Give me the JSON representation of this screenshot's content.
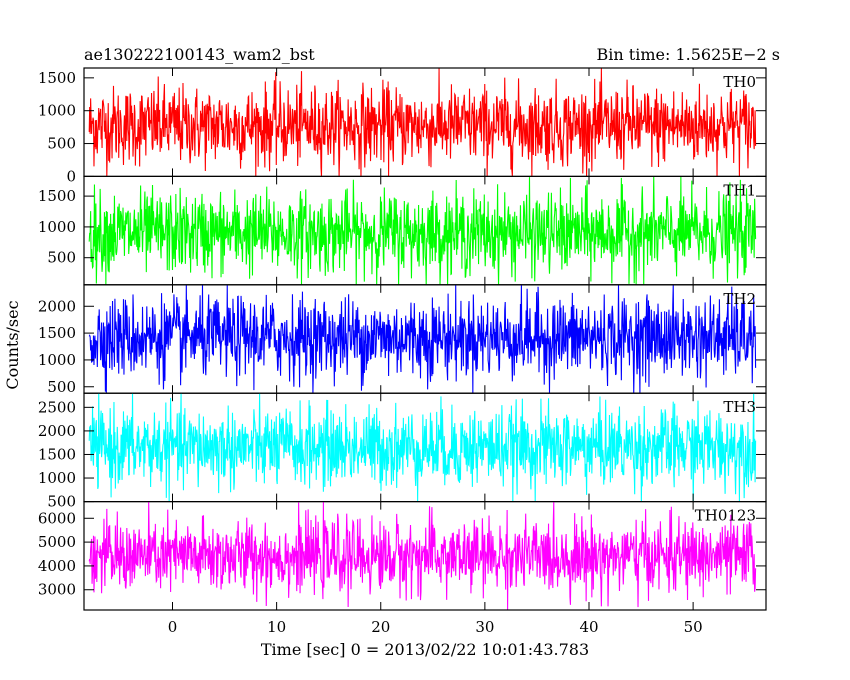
{
  "header": {
    "title": "ae130222100143_wam2_bst",
    "bin_time": "Bin time: 1.5625E−2 s"
  },
  "chart_data": {
    "type": "line",
    "title": "ae130222100143_wam2_bst",
    "xlabel": "Time [sec] 0 = 2013/02/22 10:01:43.783",
    "ylabel": "Counts/sec",
    "xlim": [
      -8.5,
      57
    ],
    "x_ticks": [
      0,
      10,
      20,
      30,
      40,
      50
    ],
    "x_data_range": [
      -8.0,
      56.0
    ],
    "grid": false,
    "panels": [
      {
        "name": "TH0",
        "color": "#ff0000",
        "ylim": [
          0,
          1650
        ],
        "y_ticks": [
          0,
          500,
          1000,
          1500
        ],
        "baseline": 770,
        "spread": 300,
        "min": 0,
        "max": 1650
      },
      {
        "name": "TH1",
        "color": "#00ff00",
        "ylim": [
          60,
          1820
        ],
        "y_ticks": [
          500,
          1000,
          1500
        ],
        "baseline": 900,
        "spread": 330,
        "min": 60,
        "max": 1820
      },
      {
        "name": "TH2",
        "color": "#0000ff",
        "ylim": [
          380,
          2400
        ],
        "y_ticks": [
          500,
          1000,
          1500,
          2000
        ],
        "baseline": 1420,
        "spread": 380,
        "min": 380,
        "max": 2400
      },
      {
        "name": "TH3",
        "color": "#00ffff",
        "ylim": [
          500,
          2800
        ],
        "y_ticks": [
          500,
          1000,
          1500,
          2000,
          2500
        ],
        "baseline": 1650,
        "spread": 420,
        "min": 500,
        "max": 2800
      },
      {
        "name": "TH0123",
        "color": "#ff00ff",
        "ylim": [
          2150,
          6700
        ],
        "y_ticks": [
          3000,
          4000,
          5000,
          6000
        ],
        "baseline": 4400,
        "spread": 760,
        "min": 2150,
        "max": 6700
      }
    ]
  }
}
